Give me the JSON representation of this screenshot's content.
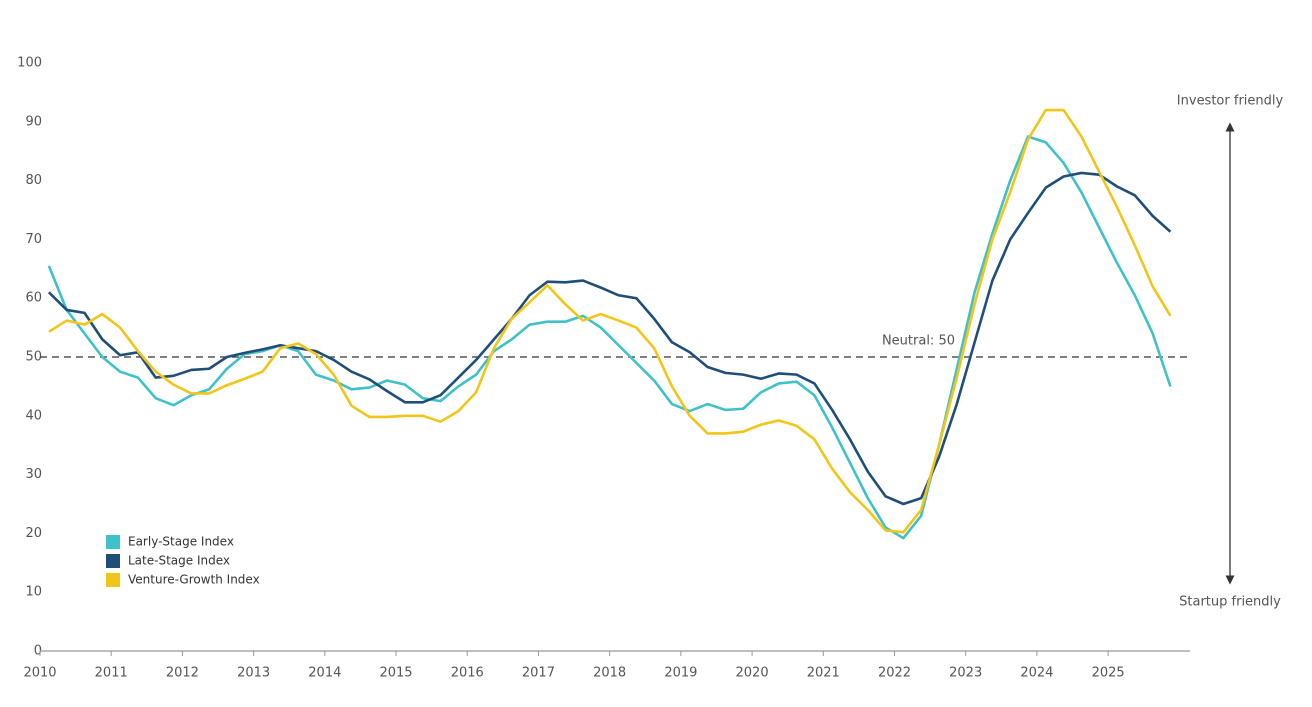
{
  "chart_data": {
    "type": "line",
    "x": [
      2010.125,
      2010.375,
      2010.625,
      2010.875,
      2011.125,
      2011.375,
      2011.625,
      2011.875,
      2012.125,
      2012.375,
      2012.625,
      2012.875,
      2013.125,
      2013.375,
      2013.625,
      2013.875,
      2014.125,
      2014.375,
      2014.625,
      2014.875,
      2015.125,
      2015.375,
      2015.625,
      2015.875,
      2016.125,
      2016.375,
      2016.625,
      2016.875,
      2017.125,
      2017.375,
      2017.625,
      2017.875,
      2018.125,
      2018.375,
      2018.625,
      2018.875,
      2019.125,
      2019.375,
      2019.625,
      2019.875,
      2020.125,
      2020.375,
      2020.625,
      2020.875,
      2021.125,
      2021.375,
      2021.625,
      2021.875,
      2022.125,
      2022.375,
      2022.625,
      2022.875,
      2023.125,
      2023.375,
      2023.625,
      2023.875,
      2024.125,
      2024.375,
      2024.625,
      2024.875,
      2025.125,
      2025.375,
      2025.625,
      2025.875
    ],
    "series": [
      {
        "name": "Early-Stage Index",
        "color": "#3fc1c9",
        "values": [
          65.5,
          58,
          54,
          50,
          47.5,
          46.5,
          43,
          41.8,
          43.5,
          44.5,
          48,
          50.5,
          51,
          52,
          51,
          47,
          46,
          44.5,
          44.8,
          46,
          45.3,
          43,
          42.5,
          45,
          47,
          51,
          53,
          55.5,
          56,
          56,
          57,
          55,
          52,
          49,
          46,
          42,
          40.8,
          42,
          41,
          41.2,
          44,
          45.5,
          45.8,
          43.5,
          38,
          32,
          26,
          21,
          19.2,
          23,
          35,
          48,
          61,
          71,
          80,
          87.5,
          86.5,
          83,
          78,
          72,
          66,
          60.5,
          54,
          45
        ]
      },
      {
        "name": "Late-Stage Index",
        "color": "#1f4e79",
        "values": [
          61,
          58,
          57.5,
          53,
          50.3,
          50.8,
          46.5,
          46.8,
          47.8,
          48,
          50,
          50.7,
          51.3,
          52,
          51.5,
          51,
          49.5,
          47.5,
          46.2,
          44.2,
          42.3,
          42.3,
          43.5,
          46.5,
          49.5,
          53,
          56.5,
          60.5,
          62.8,
          62.7,
          63,
          61.8,
          60.5,
          60,
          56.5,
          52.5,
          50.8,
          48.3,
          47.3,
          47,
          46.3,
          47.2,
          47,
          45.5,
          41,
          36,
          30.5,
          26.3,
          25,
          26,
          33,
          42,
          52.5,
          63,
          70,
          74.5,
          78.8,
          80.7,
          81.3,
          81,
          79,
          77.5,
          74,
          71.3
        ]
      },
      {
        "name": "Venture-Growth Index",
        "color": "#f2c519",
        "values": [
          54.3,
          56.2,
          55.5,
          57.3,
          55,
          51,
          47.5,
          45.3,
          43.8,
          43.8,
          45.2,
          46.3,
          47.5,
          51.5,
          52.3,
          50.5,
          47,
          41.7,
          39.8,
          39.8,
          40,
          40,
          39,
          40.8,
          44,
          51.5,
          56.5,
          59.3,
          62.2,
          59,
          56.2,
          57.3,
          56.2,
          55,
          51.5,
          45,
          40,
          37,
          37,
          37.3,
          38.5,
          39.2,
          38.3,
          36,
          31,
          27,
          24,
          20.5,
          20.2,
          24,
          35,
          46.5,
          59,
          70,
          78,
          87,
          92,
          92,
          87.5,
          81.5,
          75.5,
          69,
          62,
          57
        ]
      }
    ],
    "xlim": [
      2010,
      2026.15
    ],
    "xticks": [
      2010,
      2011,
      2012,
      2013,
      2014,
      2015,
      2016,
      2017,
      2018,
      2019,
      2020,
      2021,
      2022,
      2023,
      2024,
      2025
    ],
    "ylim": [
      0,
      100
    ],
    "yticks": [
      0,
      10,
      20,
      30,
      40,
      50,
      60,
      70,
      80,
      90,
      100
    ],
    "grid": false,
    "reference_line": {
      "value": 50,
      "label": "Neutral: 50"
    },
    "top_annotation": "Investor friendly",
    "bottom_annotation": "Startup friendly",
    "legend": "lower-left"
  }
}
